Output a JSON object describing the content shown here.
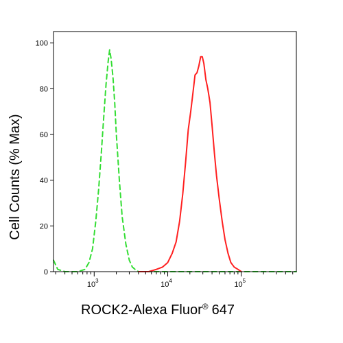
{
  "chart_data": {
    "type": "line",
    "title": "",
    "xlabel": "ROCK2-Alexa Fluor",
    "xlabel_superscript": "®",
    "xlabel_suffix": "647",
    "ylabel": "Cell Counts (% Max)",
    "x_scale": "log",
    "xlim": [
      280,
      560000
    ],
    "ylim": [
      0,
      105
    ],
    "grid": false,
    "legend": "none",
    "y_ticks": [
      0,
      20,
      40,
      60,
      80,
      100
    ],
    "y_tick_labels": [
      "0",
      "20",
      "40",
      "60",
      "80",
      "100"
    ],
    "x_ticks": [
      {
        "value": 1000,
        "base": "10",
        "exp": "3"
      },
      {
        "value": 10000,
        "base": "10",
        "exp": "4"
      },
      {
        "value": 100000,
        "base": "10",
        "exp": "5"
      }
    ],
    "series": [
      {
        "color": "#33dd33",
        "dash": "dashed",
        "x": [
          280,
          320,
          400,
          600,
          750,
          850,
          950,
          1050,
          1150,
          1250,
          1350,
          1450,
          1550,
          1620,
          1700,
          1800,
          1900,
          2000,
          2200,
          2400,
          2700,
          3000,
          3300,
          3600,
          4000,
          5000,
          10000,
          100000,
          560000
        ],
        "y": [
          5,
          1,
          0,
          0,
          1,
          4,
          10,
          22,
          36,
          52,
          68,
          82,
          92,
          97,
          93,
          85,
          74,
          60,
          40,
          24,
          12,
          5,
          2,
          1,
          0,
          0,
          0,
          0,
          0
        ]
      },
      {
        "color": "#ff2020",
        "dash": "solid",
        "x": [
          4000,
          5500,
          7000,
          8500,
          10000,
          11500,
          13000,
          14500,
          16000,
          17500,
          19000,
          20500,
          22000,
          23500,
          25000,
          26500,
          28000,
          29500,
          31000,
          33000,
          35000,
          37500,
          40000,
          43000,
          46000,
          50000,
          55000,
          60000,
          66000,
          72000,
          80000,
          90000,
          100000
        ],
        "y": [
          0,
          0,
          1,
          2,
          4,
          8,
          13,
          22,
          34,
          48,
          62,
          70,
          78,
          86,
          87,
          90,
          94,
          94,
          91,
          84,
          80,
          74,
          64,
          52,
          42,
          32,
          22,
          14,
          8,
          4,
          2,
          1,
          0
        ]
      }
    ]
  }
}
